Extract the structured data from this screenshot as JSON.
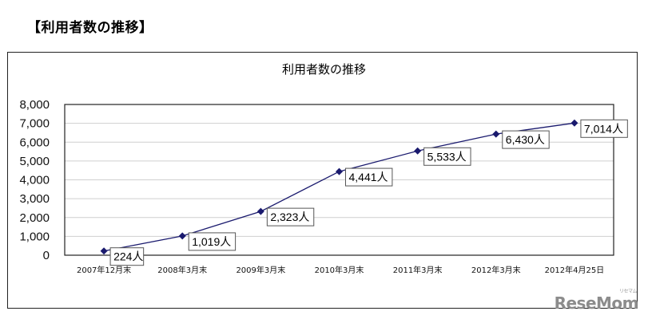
{
  "page": {
    "heading": "【利用者数の推移】",
    "watermark": "ReseMom",
    "watermark_ruby": "リセマム"
  },
  "chart_data": {
    "type": "line",
    "title": "利用者数の推移",
    "xlabel": "",
    "ylabel": "",
    "categories": [
      "2007年12月末",
      "2008年3月末",
      "2009年3月末",
      "2010年3月末",
      "2011年3月末",
      "2012年3月末",
      "2012年4月25日"
    ],
    "series": [
      {
        "name": "利用者数",
        "values": [
          224,
          1019,
          2323,
          4441,
          5533,
          6430,
          7014
        ],
        "labels": [
          "224人",
          "1,019人",
          "2,323人",
          "4,441人",
          "5,533人",
          "6,430人",
          "7,014人"
        ],
        "color": "#1a1a6e",
        "marker": "diamond"
      }
    ],
    "ylim": [
      0,
      8000
    ],
    "yticks": [
      0,
      1000,
      2000,
      3000,
      4000,
      5000,
      6000,
      7000,
      8000
    ],
    "ytick_labels": [
      "0",
      "1,000",
      "2,000",
      "3,000",
      "4,000",
      "5,000",
      "6,000",
      "7,000",
      "8,000"
    ],
    "grid": true,
    "legend": "none"
  }
}
